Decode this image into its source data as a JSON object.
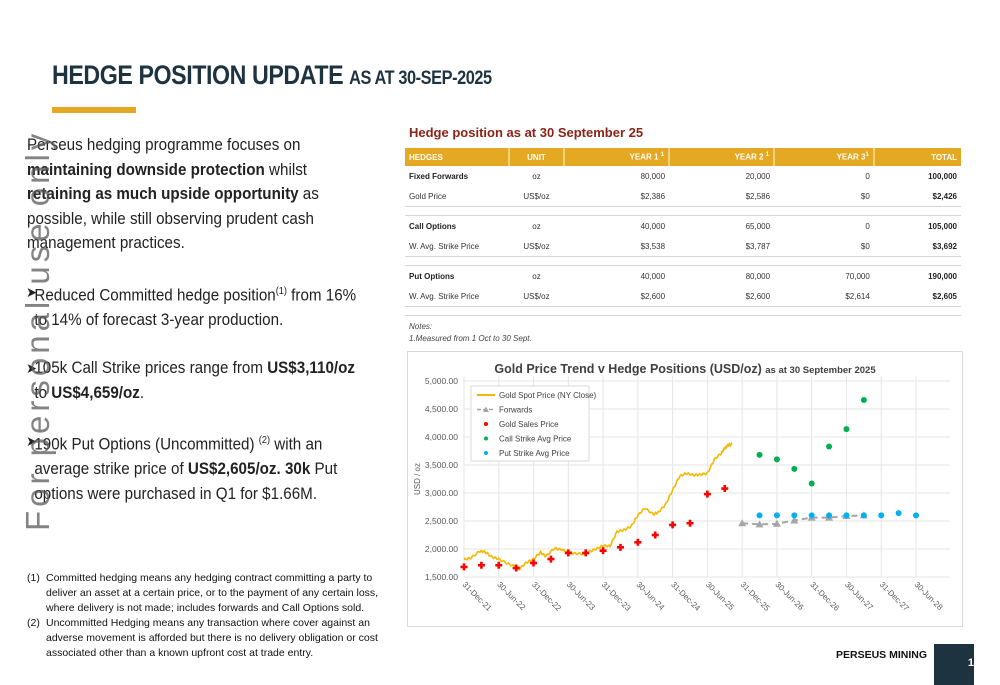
{
  "header": {
    "title": "HEDGE POSITION UPDATE",
    "subtitle": "AS AT 30-SEP-2025",
    "accent_color": "#e5a823"
  },
  "watermark": "For personal use only",
  "intro": {
    "t1": "Perseus hedging programme focuses on ",
    "b1": "maintaining downside protection",
    "t2": " whilst ",
    "b2": "retaining as much upside opportunity",
    "t3": " as possible, while still observing prudent cash management practices."
  },
  "bullets": [
    {
      "icon": "arrow-bullet-icon",
      "t1": "Reduced Committed hedge position",
      "sup": "(1)",
      "t2": " from 16% to 14% of forecast 3-year production."
    },
    {
      "icon": "arrow-bullet-icon",
      "t1": "105k Call Strike prices range from ",
      "b1": "US$3,110/oz",
      "t2": " to ",
      "b2": "US$4,659/oz",
      "t3": "."
    },
    {
      "icon": "arrow-bullet-icon",
      "t1": "190k Put Options (Uncommitted) ",
      "sup": "(2)",
      "t2": " with an average strike price of ",
      "b1": "US$2,605/oz. 30k",
      "t3": " Put options were purchased in Q1 for $1.66M."
    }
  ],
  "footnotes": [
    {
      "num": "(1)",
      "text": "Committed hedging means any hedging contract committing a party to deliver an asset at a certain price, or to the payment of any certain loss, where delivery is not made; includes forwards and Call Options sold."
    },
    {
      "num": "(2)",
      "text": "Uncommitted Hedging means any transaction where cover against an adverse movement is afforded but there is no delivery obligation or cost associated other than a known upfront cost at trade entry."
    }
  ],
  "table": {
    "title": "Hedge position as at 30 September 25",
    "header_color": "#e5a823",
    "title_color": "#8b2316",
    "columns": [
      "HEDGES",
      "UNIT",
      "YEAR 1",
      "YEAR 2",
      "YEAR 3",
      "TOTAL"
    ],
    "column_sups": [
      "",
      "",
      "1",
      "1",
      "1",
      ""
    ],
    "groups": [
      {
        "rows": [
          [
            "Fixed Forwards",
            "oz",
            "80,000",
            "20,000",
            "0",
            "100,000"
          ],
          [
            "Gold Price",
            "US$/oz",
            "$2,386",
            "$2,586",
            "$0",
            "$2,426"
          ]
        ]
      },
      {
        "rows": [
          [
            "Call Options",
            "oz",
            "40,000",
            "65,000",
            "0",
            "105,000"
          ],
          [
            "W. Avg. Strike Price",
            "US$/oz",
            "$3,538",
            "$3,787",
            "$0",
            "$3,692"
          ]
        ]
      },
      {
        "rows": [
          [
            "Put Options",
            "oz",
            "40,000",
            "80,000",
            "70,000",
            "190,000"
          ],
          [
            "W. Avg. Strike Price",
            "US$/oz",
            "$2,600",
            "$2,600",
            "$2,614",
            "$2,605"
          ]
        ]
      }
    ],
    "notes_label": "Notes:",
    "notes_text": "1.Measured from 1 Oct to 30 Sept."
  },
  "chart_data": {
    "type": "line",
    "title": "Gold Price Trend v Hedge Positions (USD/oz)",
    "title_suffix": "as at 30 September 2025",
    "xlabel": "",
    "ylabel": "USD / oz",
    "ylim": [
      1500,
      5000
    ],
    "yticks": [
      "1,500.00",
      "2,000.00",
      "2,500.00",
      "3,000.00",
      "3,500.00",
      "4,000.00",
      "4,500.00",
      "5,000.00"
    ],
    "ytick_values": [
      1500,
      2000,
      2500,
      3000,
      3500,
      4000,
      4500,
      5000
    ],
    "x_categories": [
      "31-Dec-21",
      "30-Jun-22",
      "31-Dec-22",
      "30-Jun-23",
      "31-Dec-23",
      "30-Jun-24",
      "31-Dec-24",
      "30-Jun-25",
      "31-Dec-25",
      "30-Jun-26",
      "31-Dec-26",
      "30-Jun-27",
      "31-Dec-27",
      "30-Jun-28"
    ],
    "grid": true,
    "legend_position": "top-left",
    "x_unit_note": "x values are half-year periods from 31-Dec-21 (0) to 30-Jun-28 (13)",
    "series": [
      {
        "name": "Gold Spot Price (NY Close)",
        "kind": "line",
        "color": "#f5b800",
        "x": [
          0,
          0.2,
          0.45,
          0.6,
          0.8,
          1.0,
          1.25,
          1.5,
          1.6,
          1.8,
          2.0,
          2.2,
          2.35,
          2.6,
          2.8,
          3.0,
          3.2,
          3.45,
          3.6,
          3.8,
          4.0,
          4.2,
          4.4,
          4.6,
          4.8,
          5.0,
          5.2,
          5.45,
          5.6,
          5.8,
          6.0,
          6.2,
          6.4,
          6.6,
          6.8,
          7.0,
          7.2,
          7.4,
          7.5,
          7.6,
          7.7
        ],
        "y": [
          1810,
          1840,
          1960,
          1950,
          1860,
          1820,
          1740,
          1680,
          1650,
          1760,
          1820,
          1940,
          1870,
          2010,
          1990,
          1940,
          1920,
          1910,
          1950,
          2000,
          2060,
          2050,
          2310,
          2340,
          2400,
          2600,
          2730,
          2620,
          2660,
          2800,
          3050,
          3300,
          3350,
          3320,
          3330,
          3350,
          3600,
          3710,
          3800,
          3860,
          3860
        ]
      },
      {
        "name": "Forwards",
        "kind": "dashed-line-triangles",
        "color": "#a6a6a6",
        "x": [
          8.0,
          8.5,
          9.0,
          9.5,
          10.0,
          10.5,
          11.0,
          11.5
        ],
        "y": [
          2460,
          2440,
          2450,
          2510,
          2560,
          2560,
          2590,
          2600
        ]
      },
      {
        "name": "Gold Sales Price",
        "kind": "scatter",
        "color": "#ff0000",
        "x": [
          0,
          0.5,
          1.0,
          1.5,
          2.0,
          2.5,
          3.0,
          3.5,
          4.0,
          4.5,
          5.0,
          5.5,
          6.0,
          6.5,
          7.0,
          7.5
        ],
        "y": [
          1680,
          1710,
          1710,
          1660,
          1750,
          1820,
          1930,
          1930,
          1970,
          2030,
          2120,
          2250,
          2430,
          2460,
          2980,
          3080
        ]
      },
      {
        "name": "Call Strike Avg Price",
        "kind": "scatter",
        "color": "#00b050",
        "x": [
          8.5,
          9.0,
          9.5,
          10.0,
          10.5,
          11.0,
          11.5
        ],
        "y": [
          3680,
          3600,
          3430,
          3170,
          3830,
          4140,
          4660
        ]
      },
      {
        "name": "Put Strike Avg Price",
        "kind": "scatter",
        "color": "#00b0f0",
        "x": [
          8.5,
          9.0,
          9.5,
          10.0,
          10.5,
          11.0,
          11.5,
          12.0,
          12.5,
          13.0
        ],
        "y": [
          2600,
          2600,
          2600,
          2600,
          2600,
          2600,
          2600,
          2600,
          2640,
          2600
        ]
      }
    ]
  },
  "footer": {
    "brand": "PERSEUS MINING",
    "page_number": "1",
    "page_box_color": "#1e3340"
  }
}
